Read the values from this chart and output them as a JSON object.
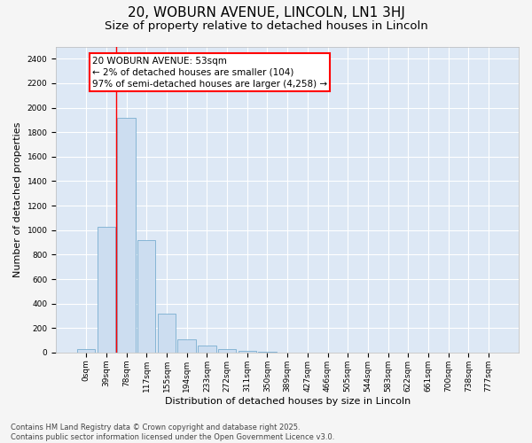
{
  "title_line1": "20, WOBURN AVENUE, LINCOLN, LN1 3HJ",
  "title_line2": "Size of property relative to detached houses in Lincoln",
  "xlabel": "Distribution of detached houses by size in Lincoln",
  "ylabel": "Number of detached properties",
  "bar_color": "#ccddf0",
  "bar_edge_color": "#7aaed0",
  "background_color": "#dde8f5",
  "grid_color": "#ffffff",
  "fig_background": "#f5f5f5",
  "categories": [
    "0sqm",
    "39sqm",
    "78sqm",
    "117sqm",
    "155sqm",
    "194sqm",
    "233sqm",
    "272sqm",
    "311sqm",
    "350sqm",
    "389sqm",
    "427sqm",
    "466sqm",
    "505sqm",
    "544sqm",
    "583sqm",
    "622sqm",
    "661sqm",
    "700sqm",
    "738sqm",
    "777sqm"
  ],
  "values": [
    30,
    1030,
    1920,
    920,
    320,
    110,
    55,
    25,
    15,
    5,
    0,
    0,
    0,
    0,
    0,
    0,
    0,
    0,
    0,
    0,
    0
  ],
  "ylim": [
    0,
    2500
  ],
  "yticks": [
    0,
    200,
    400,
    600,
    800,
    1000,
    1200,
    1400,
    1600,
    1800,
    2000,
    2200,
    2400
  ],
  "red_line_x": 1.5,
  "annotation_box_text": "20 WOBURN AVENUE: 53sqm\n← 2% of detached houses are smaller (104)\n97% of semi-detached houses are larger (4,258) →",
  "footer_line1": "Contains HM Land Registry data © Crown copyright and database right 2025.",
  "footer_line2": "Contains public sector information licensed under the Open Government Licence v3.0.",
  "title_fontsize": 11,
  "subtitle_fontsize": 9.5,
  "tick_fontsize": 6.5,
  "ylabel_fontsize": 8,
  "xlabel_fontsize": 8,
  "footer_fontsize": 6,
  "annotation_fontsize": 7.5
}
